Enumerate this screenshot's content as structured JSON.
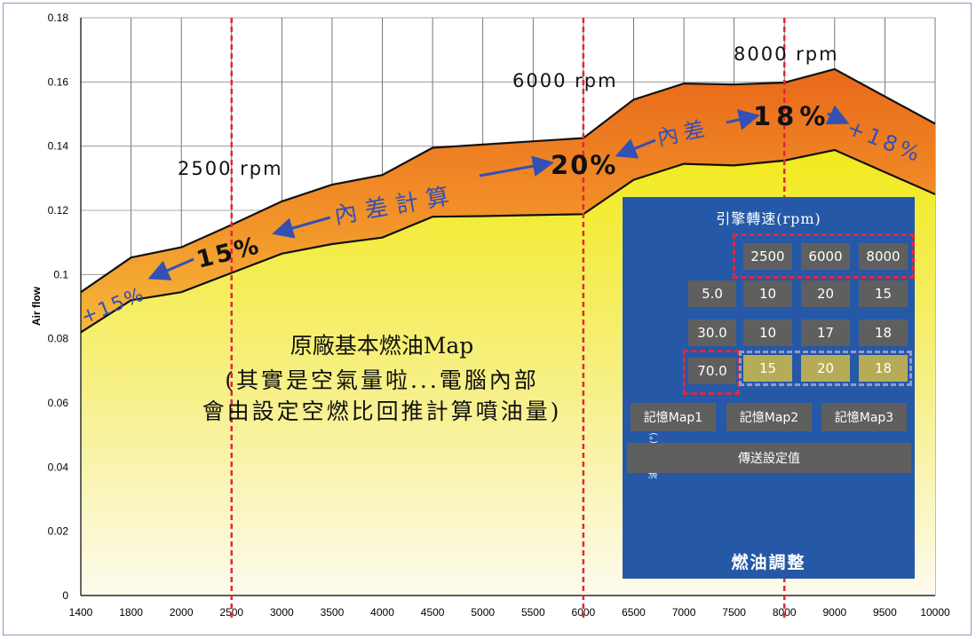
{
  "chart_data": {
    "type": "area",
    "x": [
      1400,
      1800,
      2000,
      2500,
      3000,
      3500,
      4000,
      4500,
      5000,
      5500,
      6000,
      6500,
      7000,
      7500,
      8000,
      9000,
      10000
    ],
    "x_ticks": [
      "1400",
      "1800",
      "2000",
      "2500",
      "3000",
      "3500",
      "4000",
      "4500",
      "5000",
      "5500",
      "6000",
      "6500",
      "7000",
      "7500",
      "8000",
      "9000",
      "9500",
      "10000"
    ],
    "series": [
      {
        "name": "",
        "values": [
          0.082,
          0.092,
          0.0945,
          0.1005,
          0.1065,
          0.1095,
          0.1115,
          0.118,
          0.1182,
          0.1185,
          0.1188,
          0.1295,
          0.1345,
          0.134,
          0.1355,
          0.1388,
          0.125
        ]
      },
      {
        "name": "",
        "values": [
          0.0945,
          0.1053,
          0.1085,
          0.1155,
          0.1228,
          0.128,
          0.131,
          0.1395,
          0.1405,
          0.1415,
          0.1425,
          0.1545,
          0.1595,
          0.1592,
          0.1598,
          0.164,
          0.147
        ]
      }
    ],
    "ylabel": "Air flow",
    "xlabel": "",
    "ylim": [
      0,
      0.18
    ],
    "y_ticks": [
      "0",
      "0.02",
      "0.04",
      "0.06",
      "0.08",
      "0.1",
      "0.12",
      "0.14",
      "0.16",
      "0.18"
    ],
    "grid": true,
    "markers_x": [
      2500,
      6000,
      8000
    ],
    "marker_color": "#e0283a"
  },
  "annotations": {
    "rpm_2500": "2500 rpm",
    "rpm_6000": "6000 rpm",
    "rpm_8000": "8000 rpm",
    "pct_plus15": "+15%",
    "pct_15": "15%",
    "calc_label": "內差計算",
    "pct_20": "20%",
    "diff_label": "內差",
    "pct_18": "18%",
    "pct_plus18": "+18%",
    "base_line1": "原廠基本燃油Map",
    "base_line2": "(其實是空氣量啦...電腦內部",
    "base_line3": "會由設定空燃比回推計算噴油量)"
  },
  "panel": {
    "title": "引擎轉速(rpm)",
    "side_label": "油門開度(°)",
    "rpm_headers": [
      "2500",
      "6000",
      "8000"
    ],
    "rows": [
      {
        "throttle": "5.0",
        "values": [
          "10",
          "20",
          "15"
        ]
      },
      {
        "throttle": "30.0",
        "values": [
          "10",
          "17",
          "18"
        ]
      },
      {
        "throttle": "70.0",
        "values": [
          "15",
          "20",
          "18"
        ]
      }
    ],
    "memory_buttons": [
      "記憶Map1",
      "記憶Map2",
      "記憶Map3"
    ],
    "send_button": "傳送設定值",
    "footer": "燃油調整"
  },
  "colors": {
    "panel_bg": "#2559a7",
    "cell_bg": "#5f5f5f",
    "highlight_cell": "#b6ab57",
    "orange_band": "#ee7d1c",
    "yellow_fill": "#f2ea1c",
    "arrow_blue": "#3350b5",
    "dashed_red": "#e0283a"
  }
}
